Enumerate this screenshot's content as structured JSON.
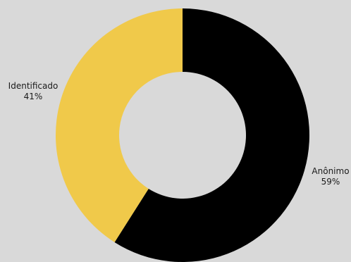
{
  "chart_data": {
    "type": "pie",
    "donut": true,
    "title": "",
    "slices": [
      {
        "label": "Anônimo",
        "value": 59,
        "percent_label": "59%",
        "color": "#000000"
      },
      {
        "label": "Identificado",
        "value": 41,
        "percent_label": "41%",
        "color": "#f0c94a"
      }
    ],
    "start_angle": "top (12 o'clock)",
    "direction": "clockwise",
    "legend": "none (labels beside slices)"
  },
  "colors": {
    "background": "#d9d9d9",
    "label_text": "#1a1a1a"
  }
}
